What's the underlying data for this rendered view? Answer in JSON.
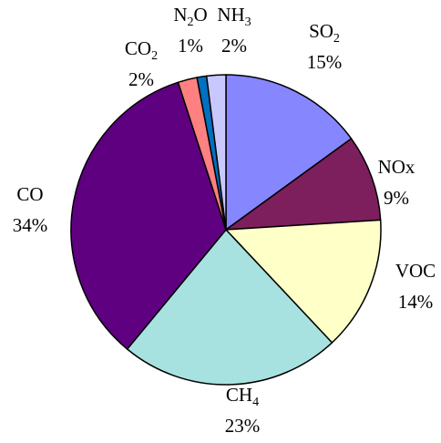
{
  "chart_data": {
    "type": "pie",
    "title": "",
    "start_angle_deg": 0,
    "direction": "clockwise",
    "slices": [
      {
        "name": "SO2",
        "label_main": "SO",
        "label_sub": "2",
        "value": 15,
        "pct_text": "15%",
        "color": "#8686FF"
      },
      {
        "name": "NOx",
        "label_main": "NOx",
        "label_sub": "",
        "value": 9,
        "pct_text": "9%",
        "color": "#7D1F5D"
      },
      {
        "name": "VOC",
        "label_main": "VOC",
        "label_sub": "",
        "value": 14,
        "pct_text": "14%",
        "color": "#FFFFC8"
      },
      {
        "name": "CH4",
        "label_main": "CH",
        "label_sub": "4",
        "value": 23,
        "pct_text": "23%",
        "color": "#A8E2E0"
      },
      {
        "name": "CO",
        "label_main": "CO",
        "label_sub": "",
        "value": 34,
        "pct_text": "34%",
        "color": "#5F0080"
      },
      {
        "name": "CO2",
        "label_main": "CO",
        "label_sub": "2",
        "value": 2,
        "pct_text": "2%",
        "color": "#FF8080"
      },
      {
        "name": "N2O",
        "label_main": "N",
        "label_sub": "2",
        "label_after": "O",
        "value": 1,
        "pct_text": "1%",
        "color": "#0070C0"
      },
      {
        "name": "NH3",
        "label_main": "NH",
        "label_sub": "3",
        "value": 2,
        "pct_text": "2%",
        "color": "#C8C8FF"
      }
    ]
  }
}
